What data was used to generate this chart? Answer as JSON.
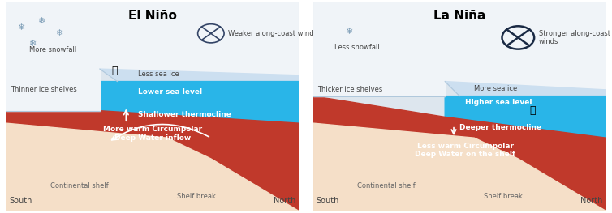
{
  "bg_color": "#e8eef3",
  "panel_bg": "#dde6ee",
  "sky_color": "#dde6ee",
  "ice_shelf_color": "#f0f4f8",
  "sea_ice_color": "#ccdff0",
  "ocean_shallow_color": "#29b5e8",
  "ocean_deep_color": "#c0392b",
  "shelf_color": "#f5dfc8",
  "el_nino_title": "El Niño",
  "la_nina_title": "La Niña",
  "south_label": "South",
  "north_label": "North",
  "shelf_break_label": "Shelf break",
  "continental_shelf_label": "Continental shelf",
  "el_nino_labels": {
    "snowfall": "More snowfall",
    "wind": "Weaker along-coast winds",
    "sea_ice": "Less sea ice",
    "ice_shelf": "Thinner ice shelves",
    "sea_level": "Lower sea level",
    "thermocline": "Shallower thermocline",
    "deep_water": "More warm Circumpolar\nDeep Water inflow"
  },
  "la_nina_labels": {
    "snowfall": "Less snowfall",
    "wind": "Stronger along-coast\nwinds",
    "sea_ice": "More sea ice",
    "ice_shelf": "Thicker ice shelves",
    "sea_level": "Higher sea level",
    "thermocline": "Deeper thermocline",
    "deep_water": "Less warm Circumpolar\nDeep Water on the shelf"
  }
}
